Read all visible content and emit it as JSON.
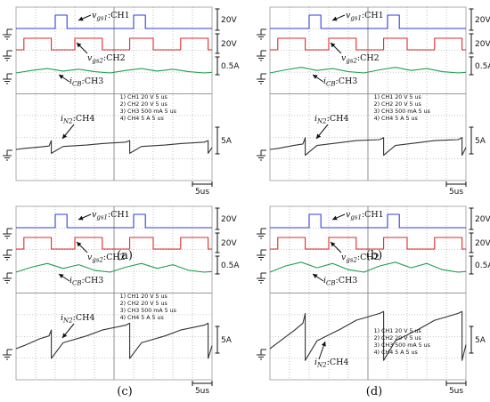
{
  "chart_data": [
    {
      "type": "line",
      "caption": "(a)",
      "title": "",
      "xlabel": "",
      "ylabel": "",
      "time_div": "5us",
      "channel_scales": [
        "20V",
        "20V",
        "0.5A",
        "5A"
      ],
      "settings": [
        "1) CH1  20  V    5 us",
        "2) CH2  20  V    5 us",
        "3) CH3  500 mA   5 us",
        "4) CH4  5  A    5 us"
      ],
      "annotations": [
        "v_gs1:CH1",
        "v_gs2:CH2",
        "i_CB:CH3",
        "i_N2:CH4"
      ],
      "series": [
        {
          "name": "CH1",
          "color": "#2f3fe0",
          "x": [
            0,
            5,
            5,
            6.5,
            6.5,
            15,
            15,
            16.5,
            16.5,
            25
          ],
          "y": [
            0,
            0,
            1,
            1,
            0,
            0,
            1,
            1,
            0,
            0
          ]
        },
        {
          "name": "CH2",
          "color": "#e02b2b",
          "x": [
            0,
            1,
            1,
            4.5,
            4.5,
            7.5,
            7.5,
            11,
            11,
            14.5,
            14.5,
            17.5,
            17.5,
            21,
            21,
            24.5,
            24.5,
            25
          ],
          "y": [
            0,
            0,
            1,
            1,
            0,
            0,
            1,
            1,
            0,
            0,
            1,
            1,
            0,
            0,
            1,
            1,
            0,
            0
          ]
        },
        {
          "name": "CH3",
          "color": "#1fa050",
          "x": [
            0,
            2,
            4,
            6,
            8,
            10,
            12,
            14,
            16,
            18,
            20,
            22,
            24,
            25
          ],
          "y": [
            0,
            0.2,
            0.35,
            0.15,
            0.3,
            0.1,
            0,
            0.2,
            0.35,
            0.15,
            0.3,
            0.1,
            0,
            0.05
          ]
        },
        {
          "name": "CH4",
          "color": "#333333",
          "x": [
            0,
            1,
            3,
            4.2,
            4.5,
            4.5,
            6,
            9,
            11,
            14,
            14.5,
            14.5,
            16,
            19,
            21,
            24,
            24.5,
            24.5,
            25
          ],
          "y": [
            0,
            0.1,
            0.25,
            0.35,
            0.9,
            -0.4,
            0.3,
            0.45,
            0.6,
            0.75,
            0.9,
            -0.4,
            0.3,
            0.45,
            0.6,
            0.75,
            0.9,
            -0.4,
            0.2
          ]
        }
      ]
    },
    {
      "type": "line",
      "caption": "(b)",
      "title": "",
      "xlabel": "",
      "ylabel": "",
      "time_div": "5us",
      "channel_scales": [
        "20V",
        "20V",
        "0.5A",
        "5A"
      ],
      "settings": [
        "1) CH1  20  V    5 us",
        "2) CH2  20  V    5 us",
        "3) CH3  500 mA   5 us",
        "4) CH4  5  A    5 us"
      ],
      "annotations": [
        "v_gs1:CH1",
        "v_gs2:CH2",
        "i_CB:CH3",
        "i_N2:CH4"
      ],
      "series": [
        {
          "name": "CH1",
          "color": "#2f3fe0",
          "x": [
            0,
            5,
            5,
            6.5,
            6.5,
            15,
            15,
            16.5,
            16.5,
            25
          ],
          "y": [
            0,
            0,
            1,
            1,
            0,
            0,
            1,
            1,
            0,
            0
          ]
        },
        {
          "name": "CH2",
          "color": "#e02b2b",
          "x": [
            0,
            1,
            1,
            4.5,
            4.5,
            7.5,
            7.5,
            11,
            11,
            14.5,
            14.5,
            17.5,
            17.5,
            21,
            21,
            24.5,
            24.5,
            25
          ],
          "y": [
            0,
            0,
            1,
            1,
            0,
            0,
            1,
            1,
            0,
            0,
            1,
            1,
            0,
            0,
            1,
            1,
            0,
            0
          ]
        },
        {
          "name": "CH3",
          "color": "#1fa050",
          "x": [
            0,
            2,
            4,
            6,
            8,
            10,
            12,
            14,
            16,
            18,
            20,
            22,
            24,
            25
          ],
          "y": [
            0,
            0.25,
            0.45,
            0.2,
            0.35,
            0.1,
            0,
            0.25,
            0.45,
            0.2,
            0.35,
            0.1,
            0,
            0.05
          ]
        },
        {
          "name": "CH4",
          "color": "#333333",
          "x": [
            0,
            1,
            3,
            4.2,
            4.5,
            4.5,
            6,
            9,
            11,
            14,
            14.5,
            14.5,
            16,
            19,
            21,
            24,
            24.5,
            24.5,
            25
          ],
          "y": [
            0,
            0.1,
            0.4,
            0.55,
            1.2,
            -0.6,
            0.4,
            0.7,
            0.9,
            1.0,
            1.2,
            -0.6,
            0.4,
            0.7,
            0.9,
            1.0,
            1.2,
            -0.6,
            0.2
          ]
        }
      ]
    },
    {
      "type": "line",
      "caption": "(c)",
      "title": "",
      "xlabel": "",
      "ylabel": "",
      "time_div": "5us",
      "channel_scales": [
        "20V",
        "20V",
        "0.5A",
        "5A"
      ],
      "settings": [
        "1) CH1  20  V    5 us",
        "2) CH2  20  V    5 us",
        "3) CH3  500 mA   5 us",
        "4) CH4  5  A    5 us"
      ],
      "annotations": [
        "v_gs1:CH1",
        "v_gs2:CH2",
        "i_CB:CH3",
        "i_N2:CH4"
      ],
      "series": [
        {
          "name": "CH1",
          "color": "#2f3fe0",
          "x": [
            0,
            5,
            5,
            6.5,
            6.5,
            15,
            15,
            16.5,
            16.5,
            25
          ],
          "y": [
            0,
            0,
            1,
            1,
            0,
            0,
            1,
            1,
            0,
            0
          ]
        },
        {
          "name": "CH2",
          "color": "#e02b2b",
          "x": [
            0,
            1,
            1,
            4.5,
            4.5,
            7.5,
            7.5,
            11,
            11,
            14.5,
            14.5,
            17.5,
            17.5,
            21,
            21,
            24.5,
            24.5,
            25
          ],
          "y": [
            0,
            0,
            1,
            1,
            0,
            0,
            1,
            1,
            0,
            0,
            1,
            1,
            0,
            0,
            1,
            1,
            0,
            0
          ]
        },
        {
          "name": "CH3",
          "color": "#1fa050",
          "x": [
            0,
            2,
            4,
            6,
            8,
            10,
            12,
            14,
            16,
            18,
            20,
            22,
            24,
            25
          ],
          "y": [
            0,
            0.4,
            0.7,
            0.3,
            0.6,
            0.15,
            0,
            0.4,
            0.7,
            0.3,
            0.6,
            0.15,
            0,
            0.05
          ]
        },
        {
          "name": "CH4",
          "color": "#333333",
          "x": [
            0,
            1,
            3,
            4.2,
            4.5,
            4.5,
            6,
            9,
            11,
            14,
            14.5,
            14.5,
            16,
            19,
            21,
            24,
            24.5,
            24.5,
            25
          ],
          "y": [
            0,
            0.3,
            1.0,
            1.3,
            1.9,
            -1.0,
            0.6,
            1.3,
            1.9,
            2.4,
            2.6,
            -1.0,
            0.6,
            1.3,
            1.9,
            2.4,
            2.6,
            -1.0,
            0.3
          ]
        }
      ]
    },
    {
      "type": "line",
      "caption": "(d)",
      "title": "",
      "xlabel": "",
      "ylabel": "",
      "time_div": "5us",
      "channel_scales": [
        "20V",
        "20V",
        "0.5A",
        "5A"
      ],
      "settings": [
        "1) CH1  20  V    5 us",
        "2) CH2  20  V    5 us",
        "3) CH3  500 mA   5 us",
        "4) CH4  5  A    5 us"
      ],
      "annotations": [
        "v_gs1:CH1",
        "v_gs2:CH2",
        "i_CB:CH3",
        "i_N2:CH4"
      ],
      "series": [
        {
          "name": "CH1",
          "color": "#2f3fe0",
          "x": [
            0,
            5,
            5,
            6.5,
            6.5,
            15,
            15,
            16.5,
            16.5,
            25
          ],
          "y": [
            0,
            0,
            1,
            1,
            0,
            0,
            1,
            1,
            0,
            0
          ]
        },
        {
          "name": "CH2",
          "color": "#e02b2b",
          "x": [
            0,
            1,
            1,
            4.5,
            4.5,
            7.5,
            7.5,
            11,
            11,
            14.5,
            14.5,
            17.5,
            17.5,
            21,
            21,
            24.5,
            24.5,
            25
          ],
          "y": [
            0,
            0,
            1,
            1,
            0,
            0,
            1,
            1,
            0,
            0,
            1,
            1,
            0,
            0,
            1,
            1,
            0,
            0
          ]
        },
        {
          "name": "CH3",
          "color": "#1fa050",
          "x": [
            0,
            2,
            4,
            6,
            8,
            10,
            12,
            14,
            16,
            18,
            20,
            22,
            24,
            25
          ],
          "y": [
            0,
            0.5,
            0.8,
            0.35,
            0.7,
            0.2,
            0,
            0.5,
            0.8,
            0.35,
            0.7,
            0.2,
            0,
            0.05
          ]
        },
        {
          "name": "CH4",
          "color": "#333333",
          "x": [
            0,
            1,
            3,
            4.2,
            4.5,
            4.5,
            6,
            9,
            11,
            14,
            14.5,
            14.5,
            16,
            19,
            21,
            24,
            24.5,
            24.5,
            25
          ],
          "y": [
            0,
            0.6,
            1.8,
            2.6,
            3.6,
            -1.2,
            0.8,
            2.0,
            2.9,
            3.6,
            3.8,
            -1.2,
            0.8,
            2.0,
            2.9,
            3.6,
            3.8,
            -1.2,
            0.4
          ]
        }
      ]
    }
  ]
}
